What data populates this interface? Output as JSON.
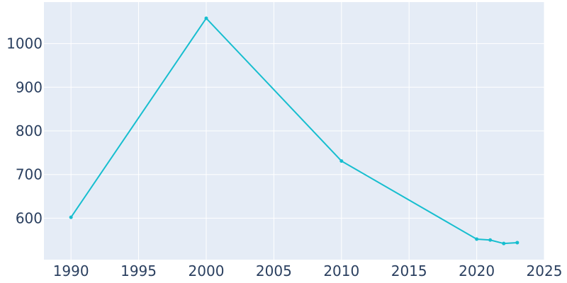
{
  "chart_data": {
    "type": "line",
    "title": "",
    "xlabel": "",
    "ylabel": "",
    "x": [
      1990,
      2000,
      2010,
      2020,
      2021,
      2022,
      2023
    ],
    "series": [
      {
        "values": [
          602,
          1058,
          731,
          552,
          550,
          542,
          544
        ]
      }
    ],
    "xlim": [
      1988,
      2025
    ],
    "ylim": [
      505,
      1095
    ],
    "x_ticks": [
      1990,
      1995,
      2000,
      2005,
      2010,
      2015,
      2020,
      2025
    ],
    "y_ticks": [
      600,
      700,
      800,
      900,
      1000
    ],
    "grid": true,
    "legend": "none",
    "colors": {
      "plot_background": "#e5ecf6",
      "grid": "#ffffff",
      "line": "#17becf",
      "tick_text": "#2a3f5f"
    }
  }
}
